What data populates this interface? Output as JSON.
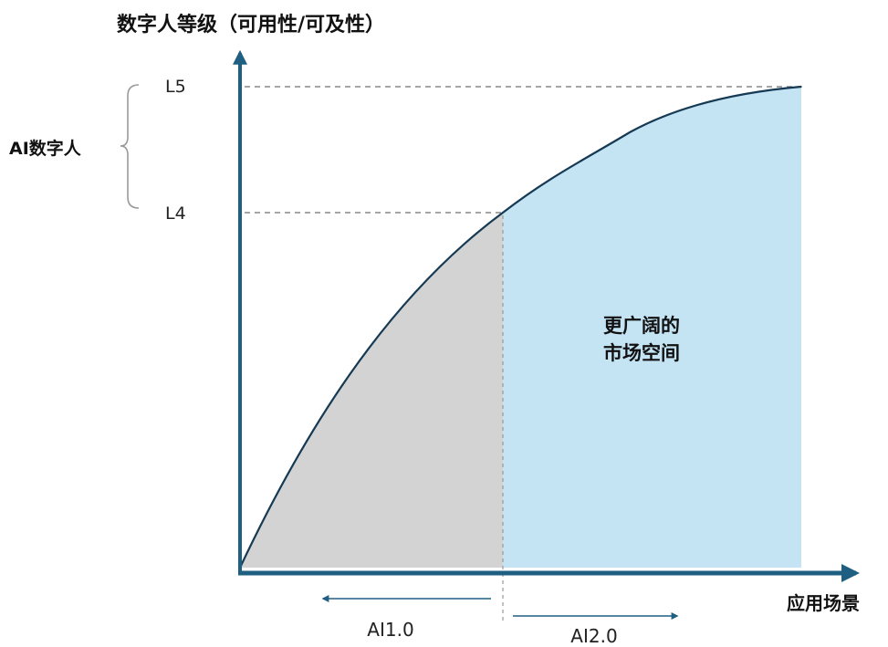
{
  "title": "数字人等级（可用性/可及性）",
  "x_axis_label": "应用场景",
  "levels": {
    "l5": "L5",
    "l4": "L4"
  },
  "bracket_label": "AI数字人",
  "region_label_line1": "更广阔的",
  "region_label_line2": "市场空间",
  "eras": {
    "ai1": "AI1.0",
    "ai2": "AI2.0"
  },
  "colors": {
    "axis": "#1f5f82",
    "curve": "#163a54",
    "ai1_fill": "#d3d3d3",
    "ai2_fill": "#c4e4f4",
    "dashed": "#888888",
    "bracket": "#999999",
    "era_arrow": "#1f5f82"
  }
}
